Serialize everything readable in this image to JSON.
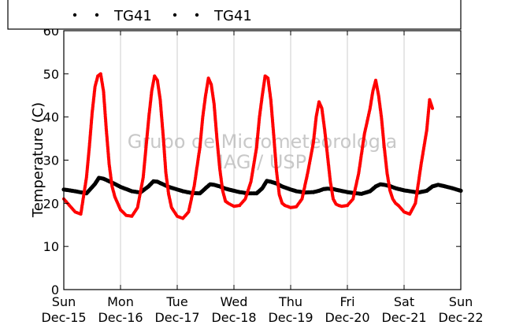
{
  "chart_data": {
    "type": "scatter",
    "ylabel": "Temperature (C)",
    "ylim": [
      0,
      60
    ],
    "yticks": [
      0,
      10,
      20,
      30,
      40,
      50,
      60
    ],
    "xlim": [
      "2013-12-15",
      "2013-12-22"
    ],
    "xticks": [
      {
        "day": "Sun",
        "date": "Dec-15"
      },
      {
        "day": "Mon",
        "date": "Dec-16"
      },
      {
        "day": "Tue",
        "date": "Dec-17"
      },
      {
        "day": "Wed",
        "date": "Dec-18"
      },
      {
        "day": "Thu",
        "date": "Dec-19"
      },
      {
        "day": "Fri",
        "date": "Dec-20"
      },
      {
        "day": "Sat",
        "date": "Dec-21"
      },
      {
        "day": "Sun",
        "date": "Dec-22"
      }
    ],
    "grid": "vertical",
    "legend_position": "top",
    "watermark": [
      "Grupo de Micrometeorologia",
      "IAG / USP"
    ],
    "series": [
      {
        "name": "TG41",
        "color": "#ff0000",
        "x_days": [
          0,
          0.1,
          0.2,
          0.3,
          0.4,
          0.45,
          0.5,
          0.55,
          0.6,
          0.65,
          0.7,
          0.75,
          0.8,
          0.85,
          0.9,
          1.0,
          1.1,
          1.2,
          1.3,
          1.4,
          1.45,
          1.5,
          1.55,
          1.6,
          1.65,
          1.7,
          1.75,
          1.8,
          1.85,
          1.9,
          2.0,
          2.1,
          2.2,
          2.3,
          2.4,
          2.45,
          2.5,
          2.55,
          2.6,
          2.65,
          2.7,
          2.75,
          2.8,
          2.85,
          2.9,
          3.0,
          3.1,
          3.2,
          3.3,
          3.4,
          3.45,
          3.5,
          3.55,
          3.6,
          3.65,
          3.7,
          3.75,
          3.8,
          3.85,
          3.9,
          4.0,
          4.1,
          4.2,
          4.3,
          4.4,
          4.45,
          4.5,
          4.55,
          4.6,
          4.65,
          4.7,
          4.75,
          4.8,
          4.85,
          4.9,
          5.0,
          5.1,
          5.2,
          5.3,
          5.4,
          5.45,
          5.5,
          5.55,
          5.6,
          5.65,
          5.7,
          5.75,
          5.8,
          5.85,
          5.9,
          6.0,
          6.1,
          6.2,
          6.3,
          6.4,
          6.45,
          6.5
        ],
        "y": [
          21.0,
          19.5,
          18.0,
          17.5,
          26.0,
          33.0,
          41.0,
          47.0,
          49.5,
          50.0,
          46.0,
          37.0,
          29.0,
          24.0,
          21.5,
          18.5,
          17.2,
          17.0,
          19.0,
          26.0,
          33.0,
          40.0,
          46.0,
          49.5,
          48.5,
          44.0,
          36.0,
          27.0,
          22.0,
          19.0,
          17.0,
          16.5,
          18.0,
          24.0,
          33.0,
          40.0,
          45.0,
          49.0,
          47.5,
          43.0,
          35.0,
          28.0,
          23.0,
          20.5,
          20.0,
          19.3,
          19.5,
          21.0,
          25.0,
          33.0,
          40.0,
          45.0,
          49.5,
          49.0,
          44.0,
          36.0,
          27.5,
          22.0,
          20.0,
          19.5,
          19.0,
          19.2,
          21.0,
          27.0,
          34.0,
          40.0,
          43.5,
          42.0,
          37.0,
          31.0,
          25.0,
          21.0,
          19.8,
          19.5,
          19.3,
          19.5,
          21.0,
          27.0,
          36.0,
          42.0,
          46.0,
          48.5,
          45.0,
          40.0,
          33.0,
          27.0,
          23.0,
          21.0,
          20.0,
          19.5,
          18.0,
          17.5,
          20.0,
          29.0,
          37.0,
          44.0,
          42.0
        ]
      },
      {
        "name": "TG41",
        "color": "#000000",
        "x_days": [
          0,
          0.2,
          0.4,
          0.55,
          0.62,
          0.7,
          0.8,
          0.9,
          1.0,
          1.1,
          1.2,
          1.35,
          1.5,
          1.58,
          1.65,
          1.75,
          1.85,
          2.0,
          2.1,
          2.25,
          2.4,
          2.5,
          2.58,
          2.65,
          2.75,
          2.85,
          3.0,
          3.1,
          3.25,
          3.4,
          3.5,
          3.58,
          3.65,
          3.75,
          3.85,
          4.0,
          4.1,
          4.25,
          4.4,
          4.5,
          4.58,
          4.65,
          4.75,
          4.85,
          5.0,
          5.1,
          5.25,
          5.4,
          5.5,
          5.58,
          5.65,
          5.75,
          5.85,
          6.0,
          6.1,
          6.25,
          6.4,
          6.5,
          6.6,
          6.7,
          6.85,
          7.0
        ],
        "y": [
          23.2,
          22.8,
          22.3,
          24.5,
          25.9,
          25.7,
          25.1,
          24.5,
          23.8,
          23.3,
          22.8,
          22.5,
          24.0,
          25.1,
          25.0,
          24.4,
          23.8,
          23.2,
          22.8,
          22.4,
          22.3,
          23.5,
          24.4,
          24.3,
          23.9,
          23.4,
          22.9,
          22.6,
          22.3,
          22.3,
          23.5,
          25.2,
          25.0,
          24.6,
          23.9,
          23.2,
          22.8,
          22.5,
          22.6,
          22.9,
          23.3,
          23.4,
          23.3,
          23.0,
          22.6,
          22.4,
          22.2,
          22.8,
          23.9,
          24.4,
          24.3,
          24.0,
          23.5,
          23.0,
          22.8,
          22.5,
          22.9,
          23.9,
          24.3,
          24.0,
          23.5,
          22.9
        ]
      }
    ]
  }
}
